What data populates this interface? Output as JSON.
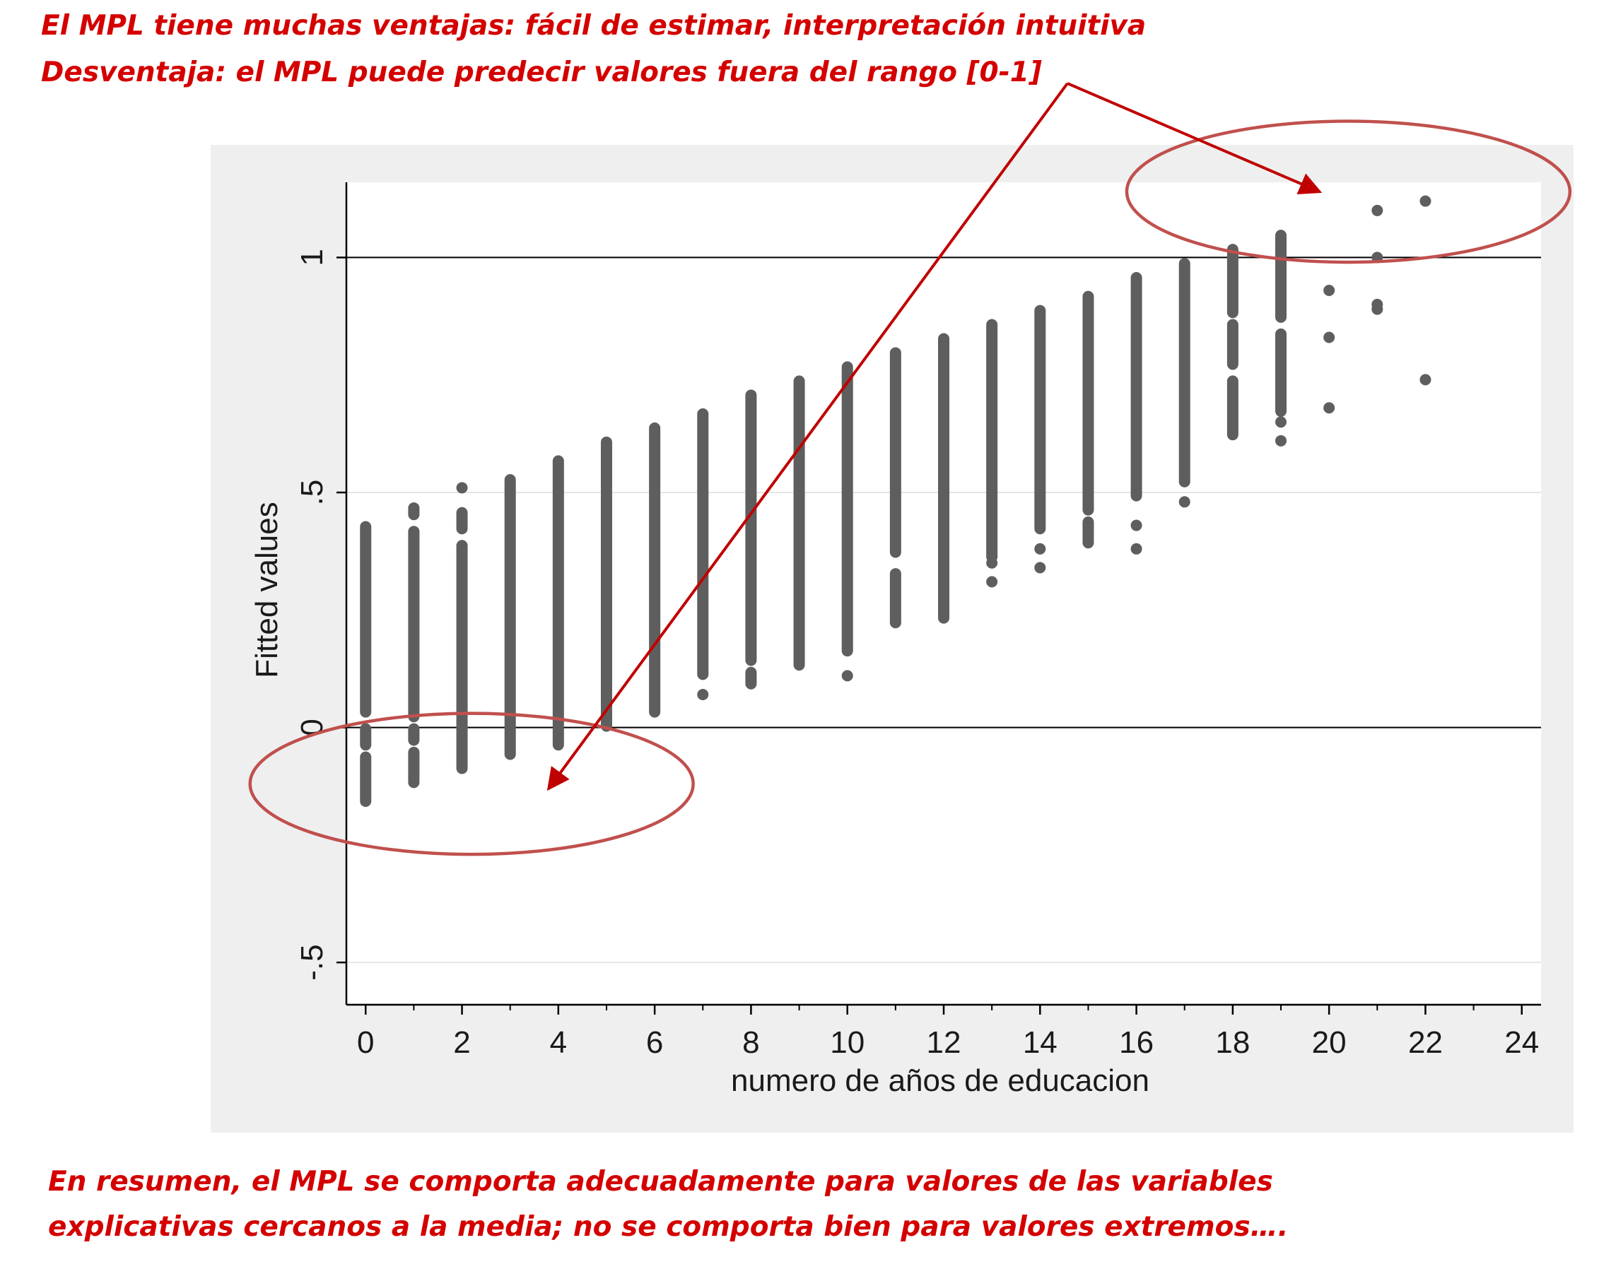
{
  "annotations": {
    "top_line_1": "El MPL tiene muchas ventajas: fácil de estimar, interpretación intuitiva",
    "top_line_2": "Desventaja: el MPL puede predecir valores fuera del rango  [0-1]",
    "bottom_line_1": "En resumen, el MPL se comporta adecuadamente para valores de las variables",
    "bottom_line_2": "explicativas cercanos a la media; no se comporta bien para valores extremos…."
  },
  "colors": {
    "annotation": "#d40000",
    "ellipse": "#c0504d",
    "arrow": "#c00000",
    "markers": "#5e5e5e",
    "outer_background": "#efefef"
  },
  "chart_data": {
    "type": "scatter",
    "title": "",
    "xlabel": "numero de años de educacion",
    "ylabel": "Fitted values",
    "xlim": [
      -0.4,
      24.4
    ],
    "ylim": [
      -0.59,
      1.16
    ],
    "x_ticks": [
      0,
      2,
      4,
      6,
      8,
      10,
      12,
      14,
      16,
      18,
      20,
      22,
      24
    ],
    "x_tick_labels": [
      "0",
      "2",
      "4",
      "6",
      "8",
      "10",
      "12",
      "14",
      "16",
      "18",
      "20",
      "22",
      "24"
    ],
    "y_ticks": [
      -0.5,
      0,
      0.5,
      1
    ],
    "y_tick_labels": [
      "-.5",
      "0",
      ".5",
      "1"
    ],
    "reference_lines_y": [
      0,
      1
    ],
    "grid": "horizontal-light",
    "series": [
      {
        "columns": [
          {
            "x": 0,
            "min": -0.16,
            "max": 0.43,
            "gaps": [
              [
                0.0,
                0.03
              ],
              [
                -0.06,
                -0.04
              ]
            ]
          },
          {
            "x": 1,
            "min": -0.12,
            "max": 0.47,
            "gaps": [
              [
                0.42,
                0.45
              ],
              [
                0.0,
                0.02
              ],
              [
                -0.05,
                -0.03
              ]
            ]
          },
          {
            "x": 2,
            "min": -0.09,
            "max": 0.46,
            "gaps": [
              [
                0.39,
                0.42
              ]
            ],
            "isolated": [
              0.51
            ]
          },
          {
            "x": 3,
            "min": -0.06,
            "max": 0.53,
            "gaps": []
          },
          {
            "x": 4,
            "min": -0.04,
            "max": 0.57,
            "gaps": []
          },
          {
            "x": 5,
            "min": 0.0,
            "max": 0.61,
            "gaps": []
          },
          {
            "x": 6,
            "min": 0.03,
            "max": 0.64,
            "gaps": []
          },
          {
            "x": 7,
            "min": 0.11,
            "max": 0.67,
            "gaps": [],
            "isolated": [
              0.07
            ]
          },
          {
            "x": 8,
            "min": 0.09,
            "max": 0.71,
            "gaps": [
              [
                0.12,
                0.14
              ]
            ]
          },
          {
            "x": 9,
            "min": 0.13,
            "max": 0.74,
            "gaps": []
          },
          {
            "x": 10,
            "min": 0.16,
            "max": 0.77,
            "gaps": [],
            "isolated": [
              0.11
            ]
          },
          {
            "x": 11,
            "min": 0.22,
            "max": 0.8,
            "gaps": [
              [
                0.33,
                0.37
              ]
            ]
          },
          {
            "x": 12,
            "min": 0.23,
            "max": 0.83,
            "gaps": []
          },
          {
            "x": 13,
            "min": 0.36,
            "max": 0.86,
            "gaps": [],
            "isolated": [
              0.31,
              0.35
            ]
          },
          {
            "x": 14,
            "min": 0.42,
            "max": 0.89,
            "gaps": [],
            "isolated": [
              0.34,
              0.38
            ]
          },
          {
            "x": 15,
            "min": 0.39,
            "max": 0.92,
            "gaps": [
              [
                0.44,
                0.46
              ]
            ]
          },
          {
            "x": 16,
            "min": 0.49,
            "max": 0.96,
            "gaps": [],
            "isolated": [
              0.38,
              0.43
            ]
          },
          {
            "x": 17,
            "min": 0.52,
            "max": 0.99,
            "gaps": [],
            "isolated": [
              0.48
            ]
          },
          {
            "x": 18,
            "min": 0.62,
            "max": 1.02,
            "gaps": [
              [
                0.74,
                0.77
              ],
              [
                0.86,
                0.88
              ]
            ]
          },
          {
            "x": 19,
            "min": 0.67,
            "max": 1.05,
            "gaps": [
              [
                0.84,
                0.87
              ]
            ],
            "isolated": [
              0.61,
              0.65
            ]
          }
        ],
        "points": [
          {
            "x": 20,
            "y": 0.93
          },
          {
            "x": 20,
            "y": 0.83
          },
          {
            "x": 20,
            "y": 0.68
          },
          {
            "x": 21,
            "y": 1.1
          },
          {
            "x": 21,
            "y": 1.0
          },
          {
            "x": 21,
            "y": 0.89
          },
          {
            "x": 21,
            "y": 0.9
          },
          {
            "x": 22,
            "y": 1.12
          },
          {
            "x": 22,
            "y": 0.74
          }
        ]
      }
    ],
    "highlights": [
      {
        "shape": "ellipse",
        "label": "values above 1",
        "cx": 20.4,
        "cy": 1.14,
        "rx_units": 4.6,
        "ry_units": 0.15
      },
      {
        "shape": "ellipse",
        "label": "values below 0",
        "cx": 2.2,
        "cy": -0.12,
        "rx_units": 4.6,
        "ry_units": 0.15
      }
    ],
    "arrows": [
      {
        "from_note": "top_line_2",
        "to": {
          "x": 19.8,
          "y": 1.14
        }
      },
      {
        "from_note": "top_line_2",
        "to": {
          "x": 3.8,
          "y": -0.13
        }
      }
    ]
  }
}
